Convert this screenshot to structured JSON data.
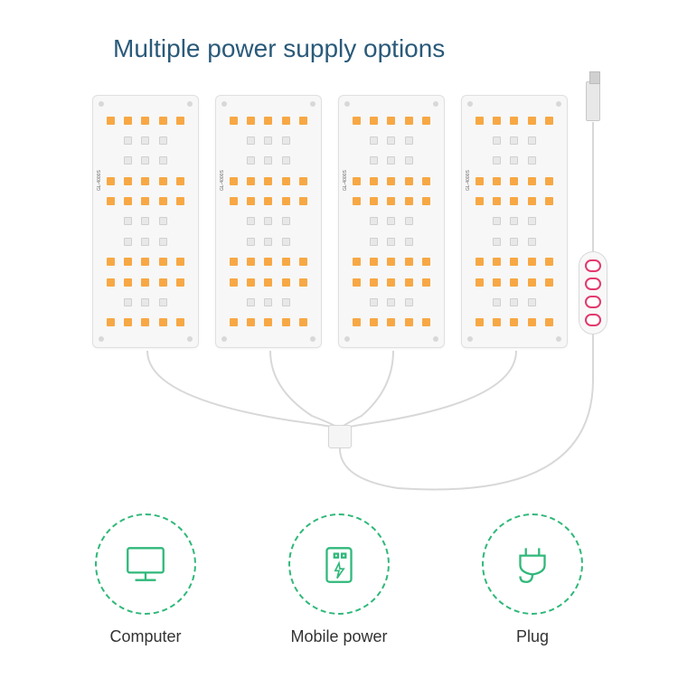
{
  "title": "Multiple power supply options",
  "panel": {
    "count": 4,
    "bg_color": "#f7f7f7",
    "border_color": "#e0e0e0",
    "led_orange": "#f7a845",
    "led_white": "#e8e8e8",
    "led_cols": 5,
    "led_rows": 11,
    "orange_rows": [
      0,
      3,
      4,
      7,
      8,
      10
    ],
    "white_rows": [
      1,
      2,
      5,
      6,
      9
    ],
    "white_pattern_center_only": true,
    "side_label": "GL-4000S"
  },
  "controller": {
    "button_count": 4,
    "button_border": "#e23a6e"
  },
  "wires": {
    "color": "#d8d8d8",
    "width": 2
  },
  "options": [
    {
      "id": "computer",
      "label": "Computer"
    },
    {
      "id": "mobile-power",
      "label": "Mobile power"
    },
    {
      "id": "plug",
      "label": "Plug"
    }
  ],
  "accent_green": "#2fb87a",
  "title_color": "#2a5a7a"
}
